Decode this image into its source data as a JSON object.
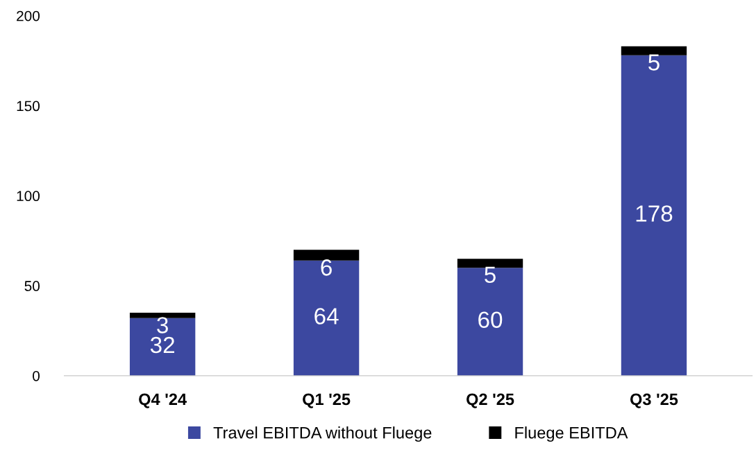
{
  "chart_data": {
    "type": "bar",
    "stacked": true,
    "categories": [
      "Q4 '24",
      "Q1 '25",
      "Q2 '25",
      "Q3 '25"
    ],
    "series": [
      {
        "name": "Travel EBITDA without Fluege",
        "color": "#3c48a0",
        "values": [
          32,
          64,
          60,
          178
        ]
      },
      {
        "name": "Fluege EBITDA",
        "color": "#000000",
        "values": [
          3,
          6,
          5,
          5
        ]
      }
    ],
    "ylim": [
      0,
      200
    ],
    "yticks": [
      0,
      50,
      100,
      150,
      200
    ],
    "data_labels": true,
    "grid": false,
    "legend": "bottom"
  }
}
